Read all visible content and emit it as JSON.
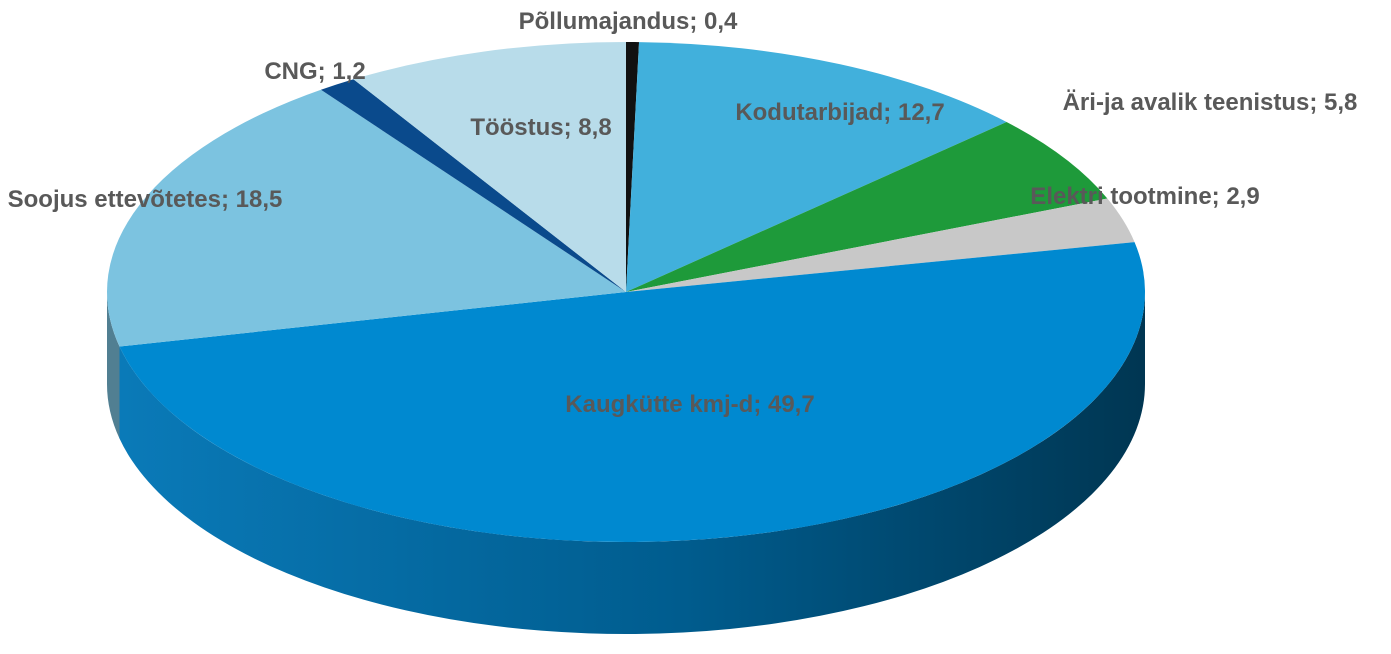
{
  "chart_data": {
    "type": "pie3d",
    "value_labels": [
      "Põllumajandus; 0,4",
      "Kodutarbijad; 12,7",
      "Äri-ja avalik teenistus; 5,8",
      "Elektri tootmine; 2,9",
      "Kaugkütte kmj-d; 49,7",
      "Soojus ettevõtetes; 18,5",
      "CNG; 1,2",
      "Tööstus; 8,8"
    ],
    "values": [
      0.4,
      12.7,
      5.8,
      2.9,
      49.7,
      18.5,
      1.2,
      8.8
    ],
    "colors": [
      "#111111",
      "#41b0dc",
      "#1e9a3a",
      "#c8c8c8",
      "#0089d0",
      "#7cc3e0",
      "#0a4a8c",
      "#b8dcea"
    ]
  }
}
